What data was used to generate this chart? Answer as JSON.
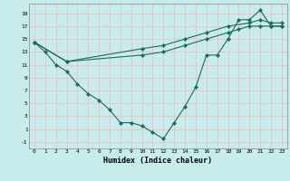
{
  "bg_color": "#c8ecec",
  "grid_color": "#f0c0c0",
  "line_color": "#1a6b5a",
  "xlabel": "Humidex (Indice chaleur)",
  "xlim": [
    -0.5,
    23.5
  ],
  "ylim": [
    -2,
    20.5
  ],
  "xticks": [
    0,
    1,
    2,
    3,
    4,
    5,
    6,
    7,
    8,
    9,
    10,
    11,
    12,
    13,
    14,
    15,
    16,
    17,
    18,
    19,
    20,
    21,
    22,
    23
  ],
  "yticks": [
    -1,
    1,
    3,
    5,
    7,
    9,
    11,
    13,
    15,
    17,
    19
  ],
  "line1_x": [
    0,
    1,
    2,
    3,
    4,
    5,
    6,
    7,
    8,
    9,
    10,
    11,
    12,
    13,
    14,
    15,
    16,
    17,
    18,
    19,
    20,
    21,
    22,
    23
  ],
  "line1_y": [
    14.5,
    13,
    11,
    10,
    8,
    6.5,
    5.5,
    4,
    2,
    2,
    1.5,
    0.5,
    -0.5,
    2,
    4.5,
    7.5,
    12.5,
    12.5,
    15,
    18,
    18,
    19.5,
    17,
    17
  ],
  "line2_x": [
    0,
    3,
    10,
    12,
    14,
    16,
    18,
    19,
    20,
    21,
    22,
    23
  ],
  "line2_y": [
    14.5,
    11.5,
    12.5,
    13,
    14,
    15,
    16,
    16.5,
    17,
    17,
    17,
    17
  ],
  "line3_x": [
    0,
    3,
    10,
    12,
    14,
    16,
    18,
    20,
    21,
    22,
    23
  ],
  "line3_y": [
    14.5,
    11.5,
    13.5,
    14,
    15,
    16,
    17,
    17.5,
    18,
    17.5,
    17.5
  ]
}
